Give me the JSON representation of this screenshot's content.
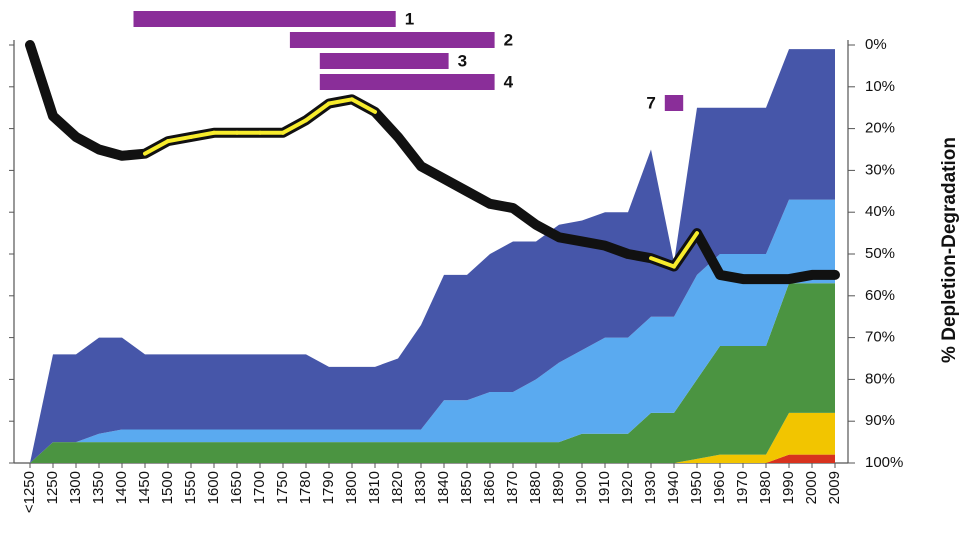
{
  "chart_data": {
    "type": "area",
    "categories": [
      "<1250",
      "1250",
      "1300",
      "1350",
      "1400",
      "1450",
      "1500",
      "1550",
      "1600",
      "1650",
      "1700",
      "1750",
      "1780",
      "1790",
      "1800",
      "1810",
      "1820",
      "1830",
      "1840",
      "1850",
      "1860",
      "1870",
      "1880",
      "1890",
      "1900",
      "1910",
      "1920",
      "1930",
      "1940",
      "1950",
      "1960",
      "1970",
      "1980",
      "1990",
      "2000",
      "2009"
    ],
    "ylabel": "% Depletion-Degradation",
    "y_axis_side": "right",
    "ylim": [
      100,
      0
    ],
    "yticks": [
      {
        "value": 0,
        "label": "0%"
      },
      {
        "value": 10,
        "label": "10%"
      },
      {
        "value": 20,
        "label": "20%"
      },
      {
        "value": 30,
        "label": "30%"
      },
      {
        "value": 40,
        "label": "40%"
      },
      {
        "value": 50,
        "label": "50%"
      },
      {
        "value": 60,
        "label": "60%"
      },
      {
        "value": 70,
        "label": "70%"
      },
      {
        "value": 80,
        "label": "80%"
      },
      {
        "value": 90,
        "label": "90%"
      },
      {
        "value": 100,
        "label": "100%"
      }
    ],
    "series": [
      {
        "color": "#d8321e",
        "values": [
          0,
          0,
          0,
          0,
          0,
          0,
          0,
          0,
          0,
          0,
          0,
          0,
          0,
          0,
          0,
          0,
          0,
          0,
          0,
          0,
          0,
          0,
          0,
          0,
          0,
          0,
          0,
          0,
          0,
          0,
          0,
          0,
          0,
          2,
          2,
          2
        ]
      },
      {
        "color": "#f2c500",
        "values": [
          0,
          0,
          0,
          0,
          0,
          0,
          0,
          0,
          0,
          0,
          0,
          0,
          0,
          0,
          0,
          0,
          0,
          0,
          0,
          0,
          0,
          0,
          0,
          0,
          0,
          0,
          0,
          0,
          0,
          1,
          2,
          2,
          2,
          10,
          10,
          10
        ]
      },
      {
        "color": "#4b9441",
        "values": [
          0,
          5,
          5,
          5,
          5,
          5,
          5,
          5,
          5,
          5,
          5,
          5,
          5,
          5,
          5,
          5,
          5,
          5,
          5,
          5,
          5,
          5,
          5,
          5,
          7,
          7,
          7,
          12,
          12,
          19,
          26,
          26,
          26,
          31,
          31,
          31
        ]
      },
      {
        "color": "#5aaaf0",
        "values": [
          0,
          0,
          0,
          2,
          3,
          3,
          3,
          3,
          3,
          3,
          3,
          3,
          3,
          3,
          3,
          3,
          3,
          3,
          10,
          10,
          12,
          12,
          15,
          19,
          20,
          23,
          23,
          23,
          23,
          25,
          22,
          22,
          22,
          20,
          20,
          20
        ]
      },
      {
        "color": "#4656a9",
        "values": [
          0,
          21,
          21,
          23,
          22,
          18,
          18,
          18,
          18,
          18,
          18,
          18,
          18,
          15,
          15,
          15,
          17,
          25,
          30,
          30,
          33,
          36,
          33,
          33,
          31,
          30,
          30,
          40,
          13,
          40,
          35,
          35,
          35,
          36,
          36,
          36
        ]
      }
    ],
    "line": {
      "color": "#111111",
      "highlight_color": "#f7ec2c",
      "values": [
        0,
        17,
        22,
        25,
        26.5,
        26,
        23,
        22,
        21,
        21,
        21,
        21,
        18,
        14,
        13,
        16,
        22,
        29,
        32,
        35,
        38,
        39,
        43,
        46,
        47,
        48,
        50,
        51,
        53,
        45,
        55,
        56,
        56,
        56,
        55,
        55
      ],
      "highlighted_segments": [
        false,
        false,
        false,
        false,
        false,
        true,
        true,
        true,
        true,
        true,
        true,
        true,
        true,
        true,
        true,
        false,
        false,
        false,
        false,
        false,
        false,
        false,
        false,
        false,
        false,
        false,
        false,
        true,
        true,
        false,
        false,
        false,
        false,
        false,
        false
      ]
    },
    "timeline": {
      "color": "#8a2e99",
      "bars": [
        {
          "label": "1",
          "start": 4.5,
          "end": 15.9
        },
        {
          "label": "2",
          "start": 11.3,
          "end": 20.2
        },
        {
          "label": "3",
          "start": 12.6,
          "end": 18.2
        },
        {
          "label": "4",
          "start": 12.6,
          "end": 20.2
        },
        {
          "label": "7",
          "start": 27.6,
          "end": 28.4,
          "label_side": "left"
        }
      ]
    }
  }
}
